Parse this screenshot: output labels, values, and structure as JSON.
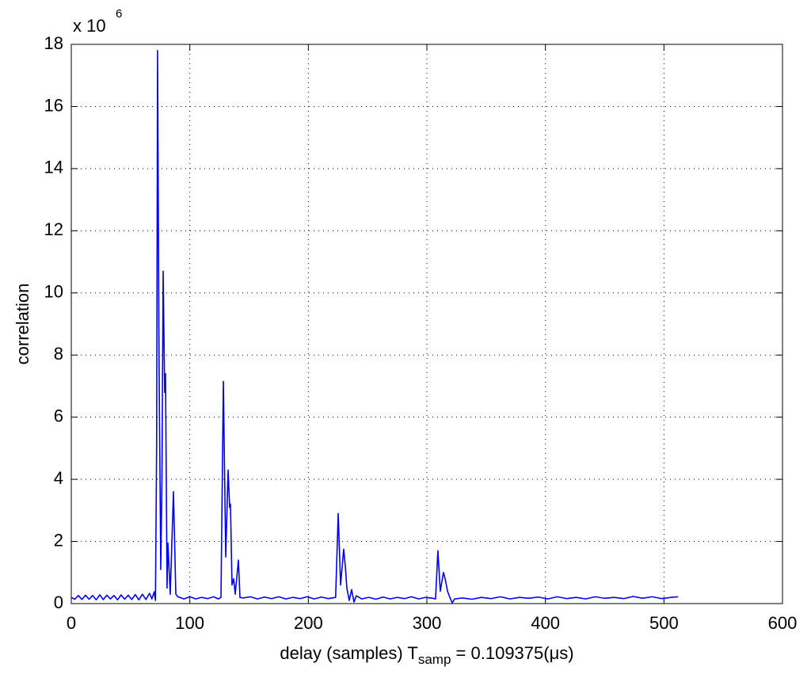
{
  "chart_data": {
    "type": "line",
    "y_multiplier": {
      "base": "x 10",
      "exponent": "6"
    },
    "y_label": "correlation",
    "x_label": {
      "text": "delay (samples) T",
      "subscript": "samp",
      "rest": " = 0.109375(μs)"
    },
    "xlim": [
      0,
      600
    ],
    "xticks": [
      0,
      100,
      200,
      300,
      400,
      500,
      600
    ],
    "ylim": [
      0,
      18
    ],
    "yticks": [
      0,
      2,
      4,
      6,
      8,
      10,
      12,
      14,
      16,
      18
    ],
    "grid": true,
    "x": [
      0,
      3,
      6,
      9,
      12,
      15,
      18,
      21,
      24,
      27,
      30,
      33,
      36,
      39,
      42,
      45,
      48,
      51,
      54,
      57,
      60,
      63,
      66,
      68,
      70,
      71,
      72,
      72.8,
      74,
      75.5,
      76.5,
      77.5,
      78.8,
      79.5,
      80.8,
      81.5,
      83.5,
      86.2,
      88.2,
      90,
      95,
      100,
      105,
      110,
      115,
      120,
      124,
      126.3,
      128.3,
      130.3,
      132.3,
      133.6,
      134.3,
      135.6,
      137,
      138.3,
      141,
      142.3,
      145,
      151,
      157,
      163,
      169,
      175,
      181,
      187,
      193,
      199,
      205,
      211,
      217,
      223,
      225.2,
      227.2,
      229.8,
      231.2,
      232.5,
      234.5,
      236.5,
      238.5,
      240.5,
      245,
      251,
      257,
      263,
      269,
      275,
      281,
      287,
      293,
      299,
      305,
      307.3,
      309.3,
      311.3,
      314,
      315.4,
      317.4,
      319.4,
      321.4,
      323.4,
      330,
      338,
      346,
      354,
      362,
      370,
      378,
      386,
      394,
      402,
      410,
      418,
      426,
      434,
      442,
      450,
      458,
      466,
      474,
      482,
      490,
      498,
      506,
      512
    ],
    "series": [
      {
        "color": "#0000ff",
        "values": [
          0.2,
          0.14,
          0.26,
          0.13,
          0.27,
          0.14,
          0.26,
          0.12,
          0.28,
          0.13,
          0.27,
          0.15,
          0.26,
          0.12,
          0.28,
          0.14,
          0.27,
          0.13,
          0.29,
          0.12,
          0.3,
          0.13,
          0.33,
          0.15,
          0.38,
          0.1,
          5,
          17.8,
          8,
          1.1,
          4,
          10.7,
          6.8,
          7.4,
          0.5,
          1.95,
          0.3,
          3.6,
          0.3,
          0.22,
          0.15,
          0.22,
          0.15,
          0.2,
          0.16,
          0.22,
          0.15,
          0.2,
          7.15,
          1.5,
          4.3,
          3.1,
          3.2,
          0.6,
          0.8,
          0.3,
          1.4,
          0.2,
          0.18,
          0.22,
          0.15,
          0.21,
          0.16,
          0.22,
          0.15,
          0.2,
          0.16,
          0.22,
          0.15,
          0.21,
          0.16,
          0.2,
          2.9,
          0.6,
          1.75,
          1.2,
          0.5,
          0.1,
          0.45,
          0.05,
          0.25,
          0.15,
          0.2,
          0.14,
          0.21,
          0.15,
          0.2,
          0.16,
          0.22,
          0.15,
          0.2,
          0.17,
          0.15,
          1.7,
          0.4,
          1.0,
          0.8,
          0.4,
          0.2,
          0.02,
          0.15,
          0.18,
          0.14,
          0.2,
          0.16,
          0.22,
          0.15,
          0.2,
          0.17,
          0.21,
          0.15,
          0.22,
          0.16,
          0.2,
          0.15,
          0.22,
          0.17,
          0.2,
          0.16,
          0.23,
          0.17,
          0.22,
          0.16,
          0.2,
          0.22
        ]
      }
    ]
  }
}
